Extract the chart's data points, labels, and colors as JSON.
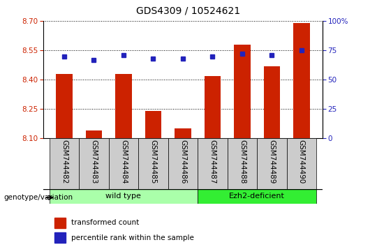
{
  "title": "GDS4309 / 10524621",
  "samples": [
    "GSM744482",
    "GSM744483",
    "GSM744484",
    "GSM744485",
    "GSM744486",
    "GSM744487",
    "GSM744488",
    "GSM744489",
    "GSM744490"
  ],
  "transformed_counts": [
    8.43,
    8.14,
    8.43,
    8.24,
    8.15,
    8.42,
    8.58,
    8.47,
    8.69
  ],
  "percentile_ranks": [
    70,
    67,
    71,
    68,
    68,
    70,
    72,
    71,
    75
  ],
  "ylim_left": [
    8.1,
    8.7
  ],
  "ylim_right": [
    0,
    100
  ],
  "yticks_left": [
    8.1,
    8.25,
    8.4,
    8.55,
    8.7
  ],
  "yticks_right": [
    0,
    25,
    50,
    75,
    100
  ],
  "bar_color": "#CC2200",
  "dot_color": "#2222BB",
  "bar_width": 0.55,
  "baseline": 8.1,
  "groups": [
    {
      "label": "wild type",
      "start": 0,
      "end": 4,
      "color": "#AAFFAA"
    },
    {
      "label": "Ezh2-deficient",
      "start": 5,
      "end": 8,
      "color": "#33EE33"
    }
  ],
  "genotype_label": "genotype/variation",
  "legend_bar_label": "transformed count",
  "legend_dot_label": "percentile rank within the sample",
  "bg_color": "#ffffff",
  "tick_color_left": "#CC2200",
  "tick_color_right": "#2222BB",
  "xticklabel_bg": "#CCCCCC"
}
